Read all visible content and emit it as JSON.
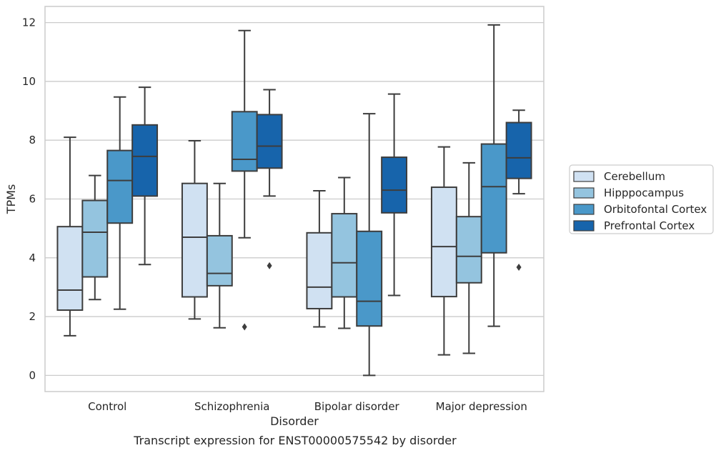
{
  "chart_data": {
    "type": "box",
    "title": "",
    "caption": "Transcript expression for ENST00000575542 by disorder",
    "xlabel": "Disorder",
    "ylabel": "TPMs",
    "ylim": [
      -0.55,
      12.55
    ],
    "yticks": [
      0,
      2,
      4,
      6,
      8,
      10,
      12
    ],
    "grid": "horizontal",
    "legend_position": "right",
    "categories": [
      "Control",
      "Schizophrenia",
      "Bipolar disorder",
      "Major depression"
    ],
    "series": [
      {
        "name": "Cerebellum",
        "color": "#d0e1f2",
        "boxes": [
          {
            "whisker_low": 1.35,
            "q1": 2.22,
            "median": 2.9,
            "q3": 5.06,
            "whisker_high": 8.1,
            "outliers": []
          },
          {
            "whisker_low": 1.92,
            "q1": 2.67,
            "median": 4.7,
            "q3": 6.53,
            "whisker_high": 7.98,
            "outliers": []
          },
          {
            "whisker_low": 1.65,
            "q1": 2.27,
            "median": 3.0,
            "q3": 4.85,
            "whisker_high": 6.28,
            "outliers": []
          },
          {
            "whisker_low": 0.7,
            "q1": 2.68,
            "median": 4.38,
            "q3": 6.4,
            "whisker_high": 7.77,
            "outliers": []
          }
        ]
      },
      {
        "name": "Hipppocampus",
        "color": "#94c4df",
        "boxes": [
          {
            "whisker_low": 2.58,
            "q1": 3.35,
            "median": 4.87,
            "q3": 5.95,
            "whisker_high": 6.8,
            "outliers": []
          },
          {
            "whisker_low": 1.62,
            "q1": 3.05,
            "median": 3.47,
            "q3": 4.75,
            "whisker_high": 6.53,
            "outliers": []
          },
          {
            "whisker_low": 1.6,
            "q1": 2.67,
            "median": 3.83,
            "q3": 5.5,
            "whisker_high": 6.73,
            "outliers": []
          },
          {
            "whisker_low": 0.75,
            "q1": 3.15,
            "median": 4.05,
            "q3": 5.4,
            "whisker_high": 7.23,
            "outliers": []
          }
        ]
      },
      {
        "name": "Orbitofontal Cortex",
        "color": "#4a98c9",
        "boxes": [
          {
            "whisker_low": 2.25,
            "q1": 5.18,
            "median": 6.63,
            "q3": 7.65,
            "whisker_high": 9.47,
            "outliers": []
          },
          {
            "whisker_low": 4.68,
            "q1": 6.95,
            "median": 7.35,
            "q3": 8.97,
            "whisker_high": 11.73,
            "outliers": [
              1.65
            ]
          },
          {
            "whisker_low": 0.0,
            "q1": 1.68,
            "median": 2.52,
            "q3": 4.9,
            "whisker_high": 8.9,
            "outliers": []
          },
          {
            "whisker_low": 1.67,
            "q1": 4.17,
            "median": 6.42,
            "q3": 7.87,
            "whisker_high": 11.92,
            "outliers": []
          }
        ]
      },
      {
        "name": "Prefrontal Cortex",
        "color": "#1764ab",
        "boxes": [
          {
            "whisker_low": 3.77,
            "q1": 6.1,
            "median": 7.45,
            "q3": 8.52,
            "whisker_high": 9.8,
            "outliers": []
          },
          {
            "whisker_low": 6.1,
            "q1": 7.05,
            "median": 7.8,
            "q3": 8.87,
            "whisker_high": 9.72,
            "outliers": [
              3.73
            ]
          },
          {
            "whisker_low": 2.72,
            "q1": 5.53,
            "median": 6.3,
            "q3": 7.42,
            "whisker_high": 9.57,
            "outliers": []
          },
          {
            "whisker_low": 6.18,
            "q1": 6.7,
            "median": 7.4,
            "q3": 8.6,
            "whisker_high": 9.02,
            "outliers": [
              3.68
            ]
          }
        ]
      }
    ]
  }
}
